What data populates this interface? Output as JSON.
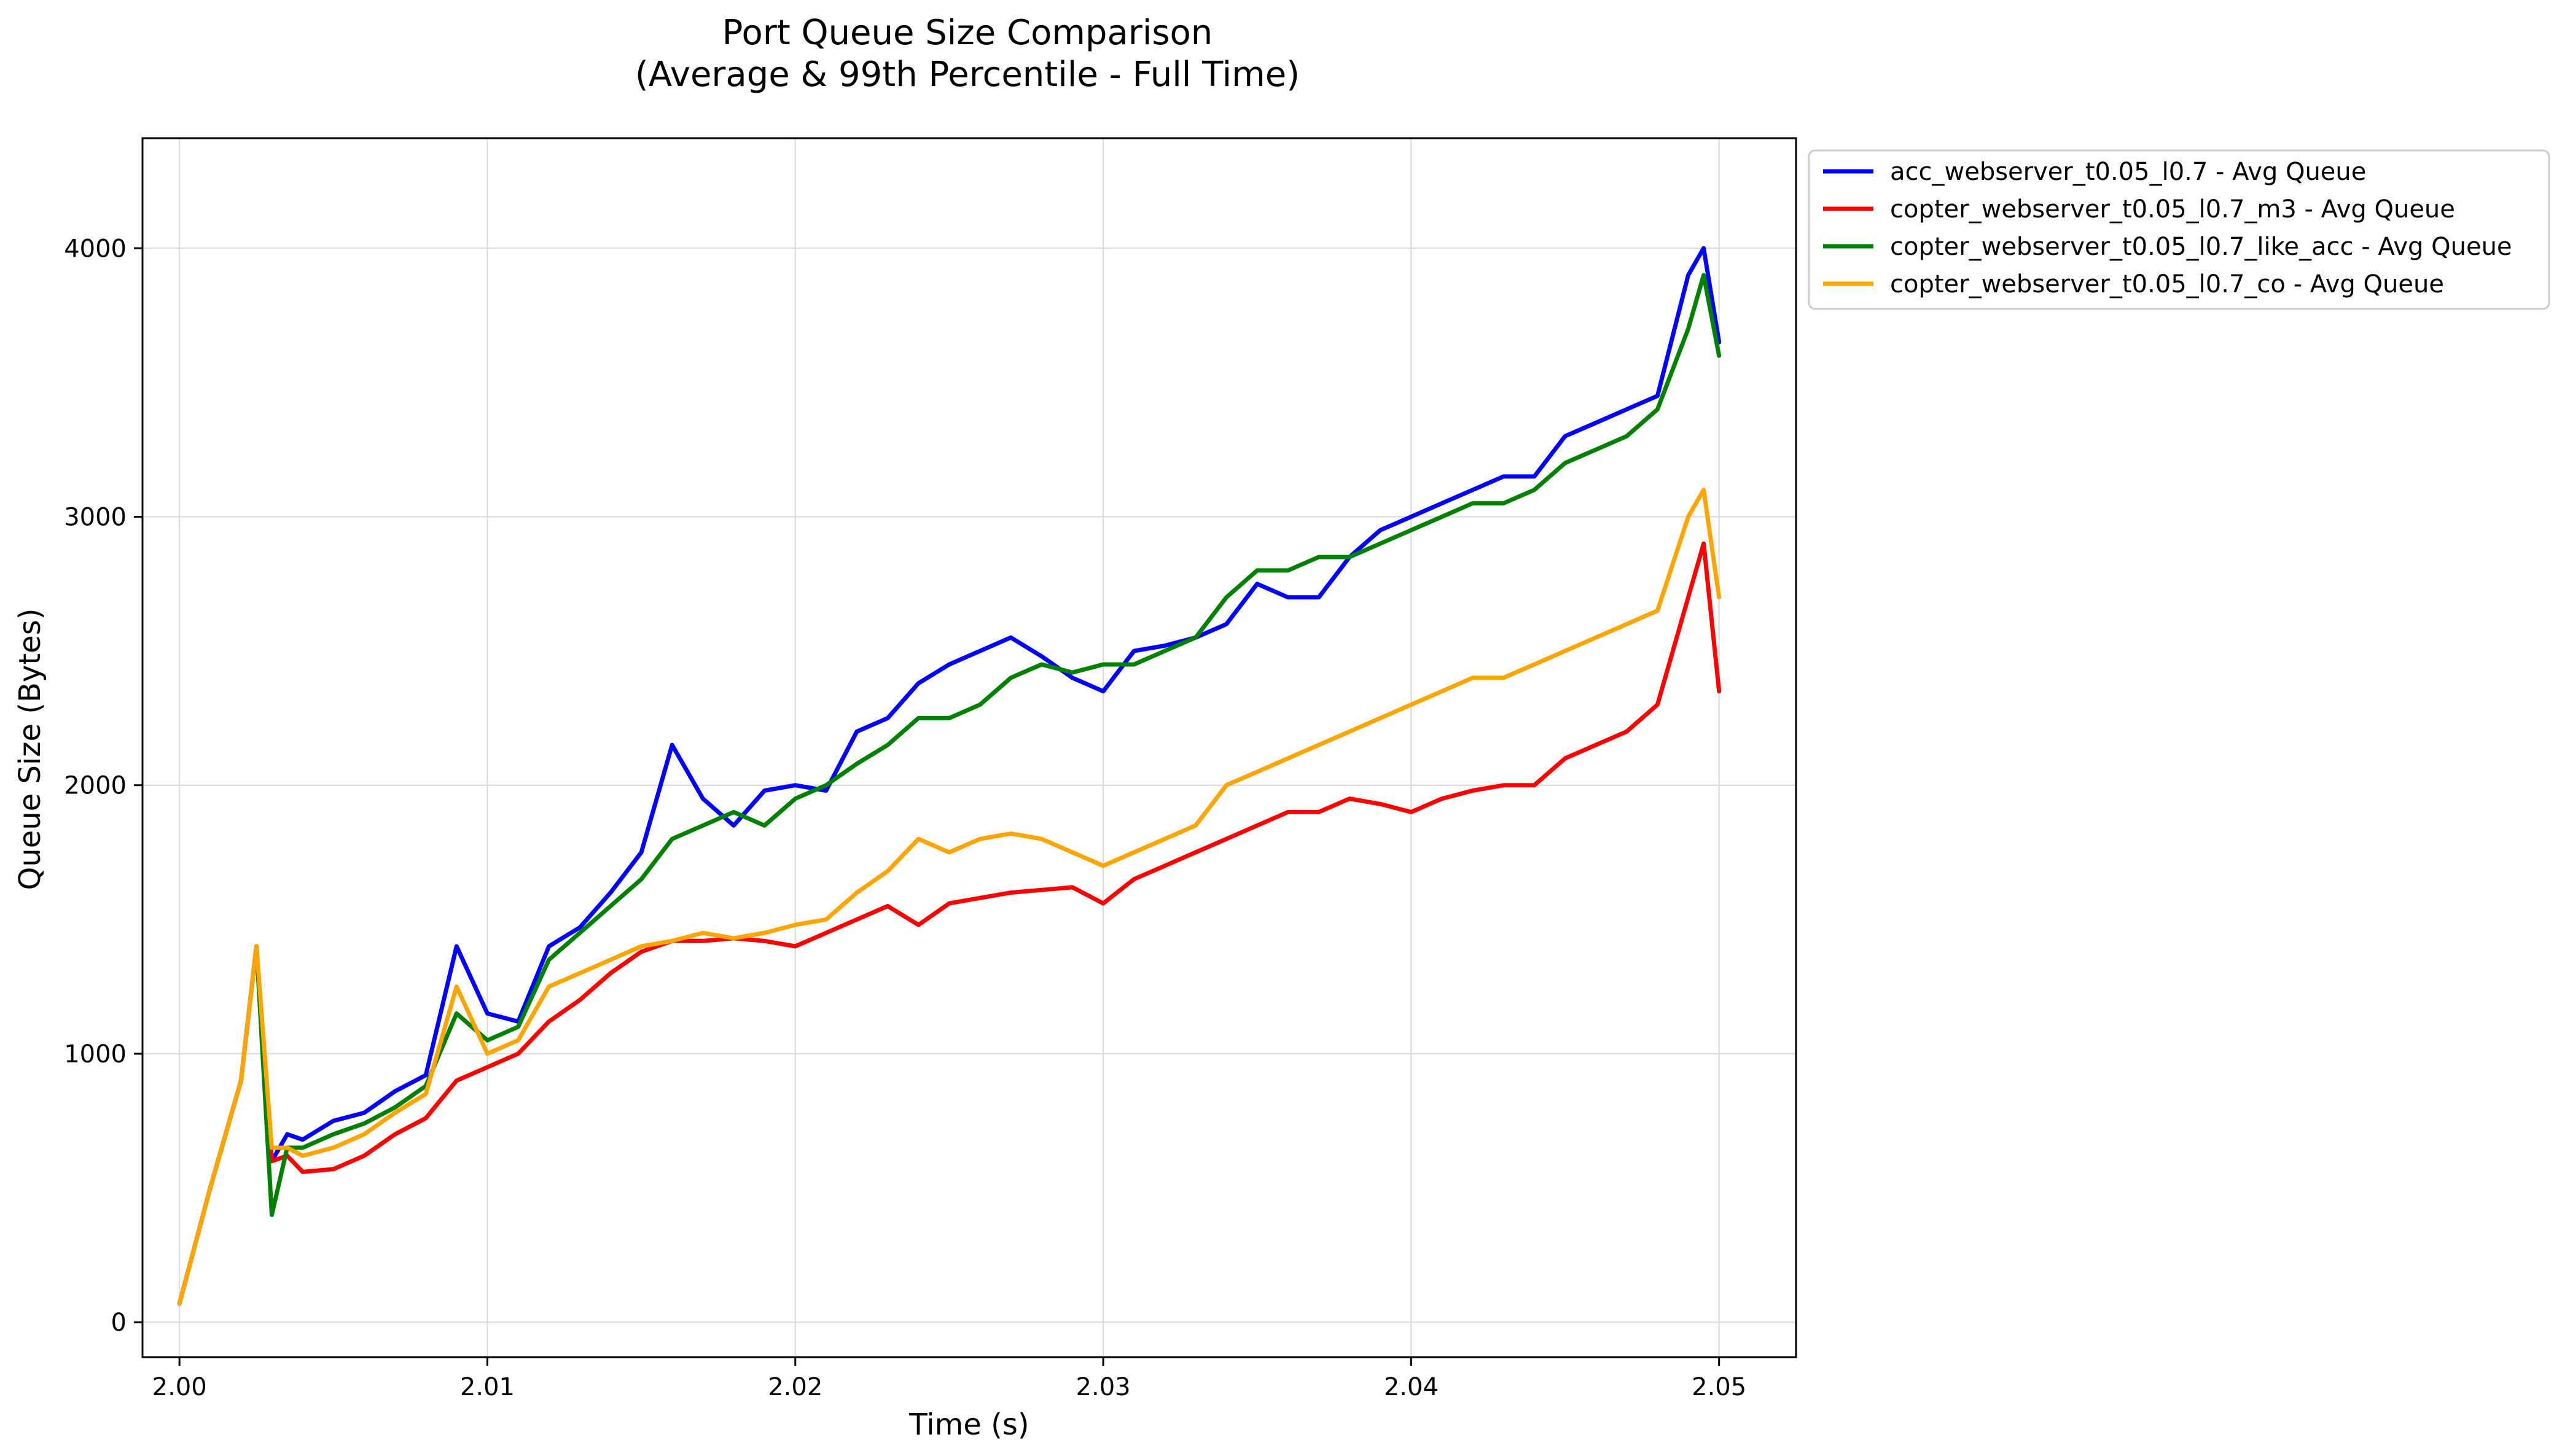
{
  "chart_data": {
    "type": "line",
    "title": "Port Queue Size Comparison",
    "subtitle": "(Average & 99th Percentile - Full Time)",
    "xlabel": "Time (s)",
    "ylabel": "Queue Size (Bytes)",
    "xlim": [
      1.9988,
      2.0525
    ],
    "ylim": [
      -130,
      4410
    ],
    "xticks": [
      2.0,
      2.01,
      2.02,
      2.03,
      2.04,
      2.05
    ],
    "xtick_labels": [
      "2.00",
      "2.01",
      "2.02",
      "2.03",
      "2.04",
      "2.05"
    ],
    "yticks": [
      0,
      1000,
      2000,
      3000,
      4000
    ],
    "ytick_labels": [
      "0",
      "1000",
      "2000",
      "3000",
      "4000"
    ],
    "grid": true,
    "legend_position": "outside-top-right",
    "series": [
      {
        "name": "acc_webserver_t0.05_l0.7 - Avg Queue",
        "color": "#0000ff",
        "x": [
          2.0,
          2.001,
          2.002,
          2.0025,
          2.003,
          2.0035,
          2.004,
          2.005,
          2.006,
          2.007,
          2.008,
          2.009,
          2.01,
          2.011,
          2.012,
          2.013,
          2.014,
          2.015,
          2.016,
          2.017,
          2.018,
          2.019,
          2.02,
          2.021,
          2.022,
          2.023,
          2.024,
          2.025,
          2.026,
          2.027,
          2.028,
          2.029,
          2.03,
          2.031,
          2.032,
          2.033,
          2.034,
          2.035,
          2.036,
          2.037,
          2.038,
          2.039,
          2.04,
          2.041,
          2.042,
          2.043,
          2.044,
          2.045,
          2.046,
          2.047,
          2.048,
          2.049,
          2.0495,
          2.05
        ],
        "y": [
          70,
          500,
          900,
          1400,
          600,
          700,
          680,
          750,
          780,
          860,
          920,
          1400,
          1150,
          1120,
          1400,
          1470,
          1600,
          1750,
          2150,
          1950,
          1850,
          1980,
          2000,
          1980,
          2200,
          2250,
          2380,
          2450,
          2500,
          2550,
          2480,
          2400,
          2350,
          2500,
          2520,
          2550,
          2600,
          2750,
          2700,
          2700,
          2850,
          2950,
          3000,
          3050,
          3100,
          3150,
          3150,
          3300,
          3350,
          3400,
          3450,
          3900,
          4000,
          3650
        ]
      },
      {
        "name": "copter_webserver_t0.05_l0.7_m3 - Avg Queue",
        "color": "#ff0000",
        "x": [
          2.0,
          2.001,
          2.002,
          2.0025,
          2.003,
          2.0035,
          2.004,
          2.005,
          2.006,
          2.007,
          2.008,
          2.009,
          2.01,
          2.011,
          2.012,
          2.013,
          2.014,
          2.015,
          2.016,
          2.017,
          2.018,
          2.019,
          2.02,
          2.021,
          2.022,
          2.023,
          2.024,
          2.025,
          2.026,
          2.027,
          2.028,
          2.029,
          2.03,
          2.031,
          2.032,
          2.033,
          2.034,
          2.035,
          2.036,
          2.037,
          2.038,
          2.039,
          2.04,
          2.041,
          2.042,
          2.043,
          2.044,
          2.045,
          2.046,
          2.047,
          2.048,
          2.049,
          2.0495,
          2.05
        ],
        "y": [
          70,
          500,
          900,
          1400,
          600,
          620,
          560,
          570,
          620,
          700,
          760,
          900,
          950,
          1000,
          1120,
          1200,
          1300,
          1380,
          1420,
          1420,
          1430,
          1420,
          1400,
          1450,
          1500,
          1550,
          1480,
          1560,
          1580,
          1600,
          1610,
          1620,
          1560,
          1650,
          1700,
          1750,
          1800,
          1850,
          1900,
          1900,
          1950,
          1930,
          1900,
          1950,
          1980,
          2000,
          2000,
          2100,
          2150,
          2200,
          2300,
          2700,
          2900,
          2350
        ]
      },
      {
        "name": "copter_webserver_t0.05_l0.7_like_acc - Avg Queue",
        "color": "#008000",
        "x": [
          2.0,
          2.001,
          2.002,
          2.0025,
          2.003,
          2.0035,
          2.004,
          2.005,
          2.006,
          2.007,
          2.008,
          2.009,
          2.01,
          2.011,
          2.012,
          2.013,
          2.014,
          2.015,
          2.016,
          2.017,
          2.018,
          2.019,
          2.02,
          2.021,
          2.022,
          2.023,
          2.024,
          2.025,
          2.026,
          2.027,
          2.028,
          2.029,
          2.03,
          2.031,
          2.032,
          2.033,
          2.034,
          2.035,
          2.036,
          2.037,
          2.038,
          2.039,
          2.04,
          2.041,
          2.042,
          2.043,
          2.044,
          2.045,
          2.046,
          2.047,
          2.048,
          2.049,
          2.0495,
          2.05
        ],
        "y": [
          70,
          500,
          900,
          1400,
          400,
          650,
          650,
          700,
          740,
          800,
          880,
          1150,
          1050,
          1100,
          1350,
          1450,
          1550,
          1650,
          1800,
          1850,
          1900,
          1850,
          1950,
          2000,
          2080,
          2150,
          2250,
          2250,
          2300,
          2400,
          2450,
          2420,
          2450,
          2450,
          2500,
          2550,
          2700,
          2800,
          2800,
          2850,
          2850,
          2900,
          2950,
          3000,
          3050,
          3050,
          3100,
          3200,
          3250,
          3300,
          3400,
          3700,
          3900,
          3600
        ]
      },
      {
        "name": "copter_webserver_t0.05_l0.7_co - Avg Queue",
        "color": "#ffa500",
        "x": [
          2.0,
          2.001,
          2.002,
          2.0025,
          2.003,
          2.0035,
          2.004,
          2.005,
          2.006,
          2.007,
          2.008,
          2.009,
          2.01,
          2.011,
          2.012,
          2.013,
          2.014,
          2.015,
          2.016,
          2.017,
          2.018,
          2.019,
          2.02,
          2.021,
          2.022,
          2.023,
          2.024,
          2.025,
          2.026,
          2.027,
          2.028,
          2.029,
          2.03,
          2.031,
          2.032,
          2.033,
          2.034,
          2.035,
          2.036,
          2.037,
          2.038,
          2.039,
          2.04,
          2.041,
          2.042,
          2.043,
          2.044,
          2.045,
          2.046,
          2.047,
          2.048,
          2.049,
          2.0495,
          2.05
        ],
        "y": [
          70,
          500,
          900,
          1400,
          650,
          650,
          620,
          650,
          700,
          780,
          850,
          1250,
          1000,
          1050,
          1250,
          1300,
          1350,
          1400,
          1420,
          1450,
          1430,
          1450,
          1480,
          1500,
          1600,
          1680,
          1800,
          1750,
          1800,
          1820,
          1800,
          1750,
          1700,
          1750,
          1800,
          1850,
          2000,
          2050,
          2100,
          2150,
          2200,
          2250,
          2300,
          2350,
          2400,
          2400,
          2450,
          2500,
          2550,
          2600,
          2650,
          3000,
          3100,
          2700
        ]
      }
    ]
  }
}
